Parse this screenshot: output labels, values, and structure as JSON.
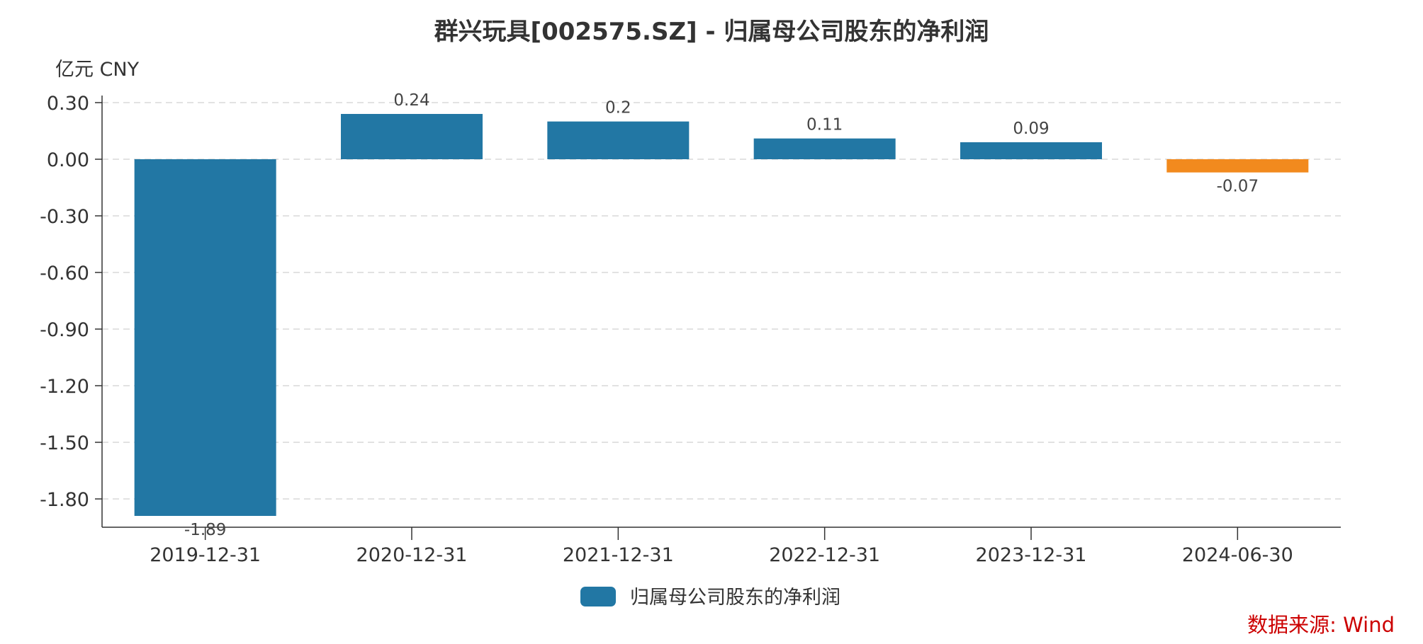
{
  "chart_data": {
    "type": "bar",
    "title": "群兴玩具[002575.SZ] - 归属母公司股东的净利润",
    "unit": "亿元  CNY",
    "categories": [
      "2019-12-31",
      "2020-12-31",
      "2021-12-31",
      "2022-12-31",
      "2023-12-31",
      "2024-06-30"
    ],
    "series": [
      {
        "name": "归属母公司股东的净利润",
        "values": [
          -1.89,
          0.24,
          0.2,
          0.11,
          0.09,
          -0.07
        ],
        "value_labels": [
          "-1.89",
          "0.24",
          "0.2",
          "0.11",
          "0.09",
          "-0.07"
        ]
      }
    ],
    "yticks": [
      0.3,
      0.0,
      -0.3,
      -0.6,
      -0.9,
      -1.2,
      -1.5,
      -1.8
    ],
    "ytick_labels": [
      "0.30",
      "0.00",
      "-0.30",
      "-0.60",
      "-0.90",
      "-1.20",
      "-1.50",
      "-1.80"
    ],
    "ylim": [
      -2.0,
      0.34
    ],
    "grid": true,
    "legend_position": "bottom-center",
    "colors": {
      "bar": "#2277a4",
      "highlight": "#f28a1e"
    },
    "highlight_index": 5,
    "source": "数据来源: Wind"
  }
}
